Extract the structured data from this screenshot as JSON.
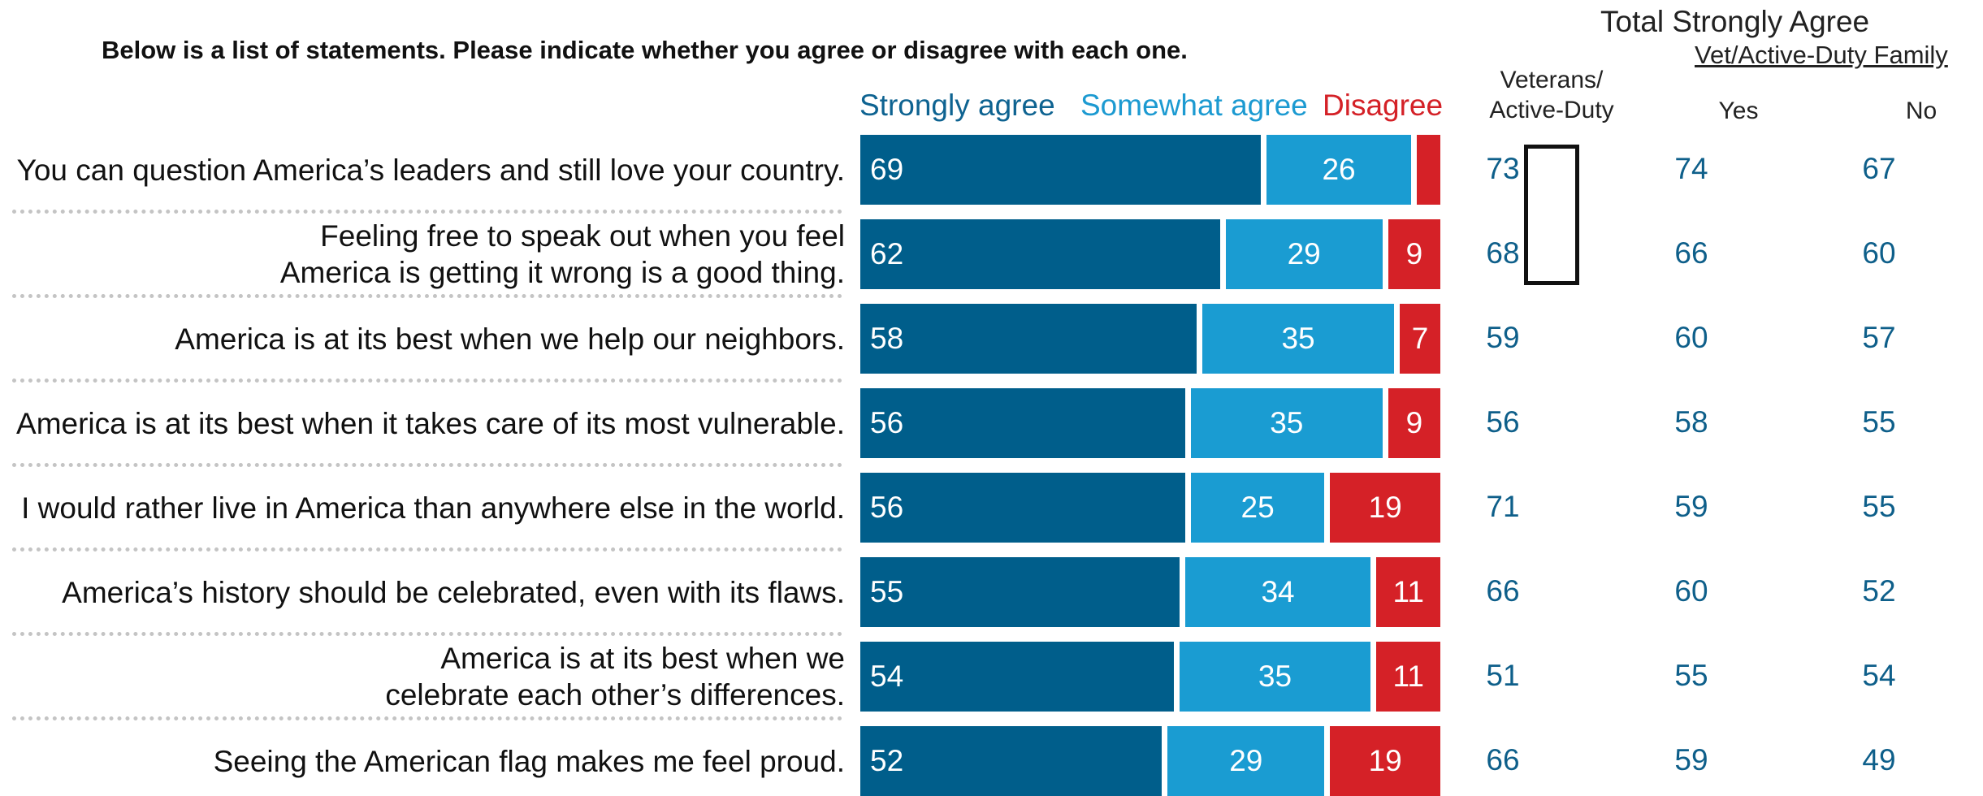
{
  "question": "Below is a list of statements. Please indicate whether you agree or disagree with each one.",
  "legend": {
    "strongly_agree": "Strongly agree",
    "somewhat_agree": "Somewhat agree",
    "disagree": "Disagree"
  },
  "total_header": "Total Strongly Agree",
  "family_header": "Vet/Active-Duty Family",
  "columns": {
    "veterans_line1": "Veterans/",
    "veterans_line2": "Active-Duty",
    "yes": "Yes",
    "no": "No"
  },
  "colors": {
    "strongly_agree": "#005e8b",
    "somewhat_agree": "#1a9cd2",
    "disagree": "#d52127",
    "number_text": "#0e5f8a"
  },
  "chart_data": {
    "type": "bar",
    "orientation": "horizontal-stacked",
    "categories": [
      [
        "You can question America’s leaders and still love your country."
      ],
      [
        "Feeling free to speak out when you feel",
        "America is getting it wrong is a good thing."
      ],
      [
        "America is at its best when we help our neighbors."
      ],
      [
        "America is at its best when it takes care of its most vulnerable."
      ],
      [
        "I would rather live in America than anywhere else in the world."
      ],
      [
        "America’s history should be celebrated, even with its flaws."
      ],
      [
        "America is at its best when we",
        "celebrate each other’s differences."
      ],
      [
        "Seeing the American flag makes me feel proud."
      ]
    ],
    "series": [
      {
        "name": "Strongly agree",
        "values": [
          69,
          62,
          58,
          56,
          56,
          55,
          54,
          52
        ]
      },
      {
        "name": "Somewhat agree",
        "values": [
          26,
          29,
          35,
          35,
          25,
          34,
          35,
          29
        ]
      },
      {
        "name": "Disagree",
        "values": [
          4,
          9,
          7,
          9,
          19,
          11,
          11,
          19
        ]
      }
    ],
    "disagree_labels": [
      "",
      "9",
      "7",
      "9",
      "19",
      "11",
      "11",
      "19"
    ],
    "table": {
      "veterans_active_duty": [
        73,
        68,
        59,
        56,
        71,
        66,
        51,
        66
      ],
      "family_yes": [
        74,
        66,
        60,
        58,
        59,
        60,
        55,
        59
      ],
      "family_no": [
        67,
        60,
        57,
        55,
        55,
        52,
        54,
        49
      ]
    },
    "highlighted_rows_veterans": [
      0,
      1
    ],
    "xlim": [
      0,
      100
    ]
  }
}
